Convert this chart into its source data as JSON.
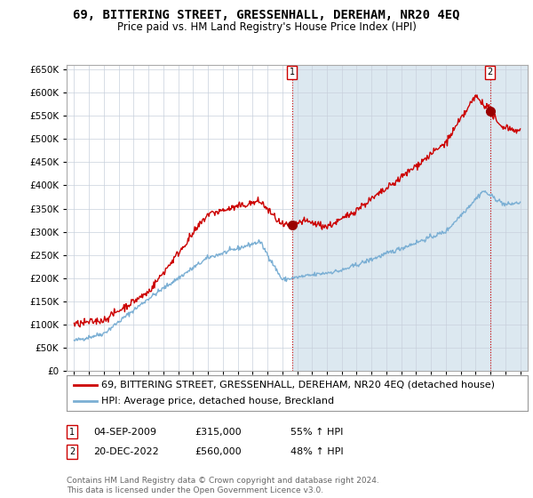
{
  "title": "69, BITTERING STREET, GRESSENHALL, DEREHAM, NR20 4EQ",
  "subtitle": "Price paid vs. HM Land Registry's House Price Index (HPI)",
  "background_color": "#ffffff",
  "grid_color": "#c8d0dc",
  "plot_bg": "#dce8f0",
  "plot_bg_left": "#ffffff",
  "shade_from": 2009.67,
  "red_line_color": "#cc0000",
  "blue_line_color": "#7bafd4",
  "marker1_year": 2009.67,
  "marker1_value": 315000,
  "marker2_year": 2022.97,
  "marker2_value": 560000,
  "ylim": [
    0,
    660000
  ],
  "yticks": [
    0,
    50000,
    100000,
    150000,
    200000,
    250000,
    300000,
    350000,
    400000,
    450000,
    500000,
    550000,
    600000,
    650000
  ],
  "xlim": [
    1994.5,
    2025.5
  ],
  "xticks": [
    1995,
    1996,
    1997,
    1998,
    1999,
    2000,
    2001,
    2002,
    2003,
    2004,
    2005,
    2006,
    2007,
    2008,
    2009,
    2010,
    2011,
    2012,
    2013,
    2014,
    2015,
    2016,
    2017,
    2018,
    2019,
    2020,
    2021,
    2022,
    2023,
    2024,
    2025
  ],
  "legend_label_red": "69, BITTERING STREET, GRESSENHALL, DEREHAM, NR20 4EQ (detached house)",
  "legend_label_blue": "HPI: Average price, detached house, Breckland",
  "footer": "Contains HM Land Registry data © Crown copyright and database right 2024.\nThis data is licensed under the Open Government Licence v3.0.",
  "title_fontsize": 10,
  "subtitle_fontsize": 8.5,
  "tick_fontsize": 7.5,
  "legend_fontsize": 8,
  "annotation_fontsize": 8
}
